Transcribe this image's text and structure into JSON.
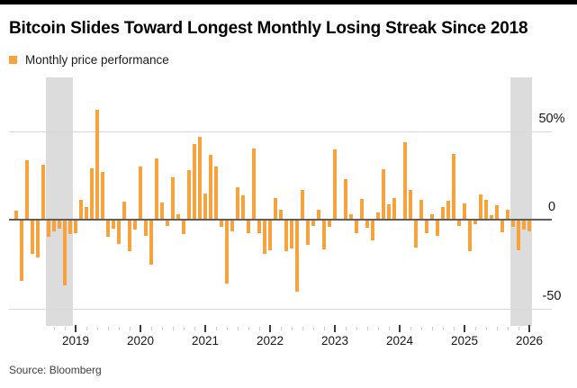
{
  "header": {
    "title": "Bitcoin Slides Toward Longest Monthly Losing Streak Since 2018"
  },
  "legend": {
    "label": "Monthly price performance"
  },
  "footer": {
    "source": "Source: Bloomberg"
  },
  "chart_data": {
    "type": "bar",
    "title": "Bitcoin Slides Toward Longest Monthly Losing Streak Since 2018",
    "legend": "Monthly price performance",
    "unit": "percent",
    "bar_color": "#f7a23b",
    "highlight_color": "#dcdcdc",
    "grid": "horizontal",
    "legend_position": "top-left",
    "y_axis_side": "right",
    "ylim": [
      -55,
      70
    ],
    "yticks": [
      {
        "label": "50%",
        "value": 50
      },
      {
        "label": "0",
        "value": 0
      },
      {
        "label": "-50",
        "value": -50
      }
    ],
    "year_labels": [
      "2019",
      "2020",
      "2021",
      "2022",
      "2023",
      "2024",
      "2025",
      "2026"
    ],
    "highlights": [
      {
        "from": "2018-08",
        "to": "2018-12",
        "meaning": "2018 monthly losing streak"
      },
      {
        "from": "2025-10",
        "to": "2026-01",
        "meaning": "current monthly losing streak"
      }
    ],
    "months": [
      "2018-02",
      "2018-03",
      "2018-04",
      "2018-05",
      "2018-06",
      "2018-07",
      "2018-08",
      "2018-09",
      "2018-10",
      "2018-11",
      "2018-12",
      "2019-01",
      "2019-02",
      "2019-03",
      "2019-04",
      "2019-05",
      "2019-06",
      "2019-07",
      "2019-08",
      "2019-09",
      "2019-10",
      "2019-11",
      "2019-12",
      "2020-01",
      "2020-02",
      "2020-03",
      "2020-04",
      "2020-05",
      "2020-06",
      "2020-07",
      "2020-08",
      "2020-09",
      "2020-10",
      "2020-11",
      "2020-12",
      "2021-01",
      "2021-02",
      "2021-03",
      "2021-04",
      "2021-05",
      "2021-06",
      "2021-07",
      "2021-08",
      "2021-09",
      "2021-10",
      "2021-11",
      "2021-12",
      "2022-01",
      "2022-02",
      "2022-03",
      "2022-04",
      "2022-05",
      "2022-06",
      "2022-07",
      "2022-08",
      "2022-09",
      "2022-10",
      "2022-11",
      "2022-12",
      "2023-01",
      "2023-02",
      "2023-03",
      "2023-04",
      "2023-05",
      "2023-06",
      "2023-07",
      "2023-08",
      "2023-09",
      "2023-10",
      "2023-11",
      "2023-12",
      "2024-01",
      "2024-02",
      "2024-03",
      "2024-04",
      "2024-05",
      "2024-06",
      "2024-07",
      "2024-08",
      "2024-09",
      "2024-10",
      "2024-11",
      "2024-12",
      "2025-01",
      "2025-02",
      "2025-03",
      "2025-04",
      "2025-05",
      "2025-06",
      "2025-07",
      "2025-08",
      "2025-09",
      "2025-10",
      "2025-11",
      "2025-12",
      "2026-01"
    ],
    "values": [
      5,
      -34,
      33.4,
      -18.9,
      -21,
      31,
      -9.2,
      -5.9,
      -4.5,
      -36.8,
      -7.4,
      -7,
      11,
      7.1,
      28.8,
      62,
      27,
      -9,
      -4.6,
      -13.4,
      10.3,
      -17.3,
      -5.1,
      29.9,
      -8.6,
      -24.9,
      34.3,
      9.5,
      -3.2,
      24,
      2.8,
      -7.5,
      27.7,
      42.5,
      46.9,
      14.5,
      36.8,
      29.8,
      -3.5,
      -35.3,
      -5.9,
      18.2,
      13.5,
      -7,
      39.9,
      -7.1,
      -18.9,
      -16.7,
      12.2,
      5.4,
      -17.3,
      -15.6,
      -40,
      16.8,
      -13.9,
      -3.1,
      5.5,
      -16.2,
      -3.6,
      39.6,
      0.1,
      23,
      2.8,
      -6.9,
      11.9,
      -4.1,
      -11.3,
      4,
      28.5,
      8.8,
      12.2,
      0.6,
      43.6,
      16.6,
      -15,
      11.1,
      -7,
      2.9,
      -8.7,
      7.3,
      10.8,
      37.3,
      -2.9,
      9.3,
      -17.5,
      -2.2,
      14.1,
      11.1,
      2.4,
      8.1,
      -6.5,
      5.4,
      -3.6,
      -16.9,
      -5,
      -6.2
    ]
  }
}
